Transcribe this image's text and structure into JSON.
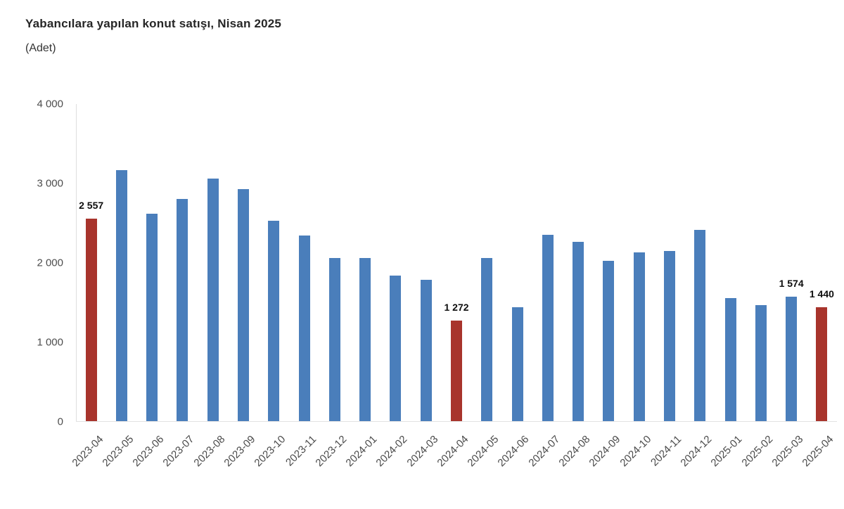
{
  "header": {
    "title": "Yabancılara yapılan konut satışı, Nisan 2025",
    "subtitle": "(Adet)"
  },
  "colors": {
    "background": "#ffffff",
    "title_text": "#262626",
    "subtitle_text": "#333333",
    "tick_text": "#4d4d4d",
    "axis_line": "#dedede",
    "value_label_text": "#0d0d0d",
    "bar_blue": "#4A7EBB",
    "bar_red": "#A8342C"
  },
  "chart_data": {
    "type": "bar",
    "title": "Yabancılara yapılan konut satışı, Nisan 2025",
    "xlabel": "",
    "ylabel": "(Adet)",
    "ylim": [
      0,
      4000
    ],
    "grid": false,
    "legend": "none",
    "x_tick_rotation": -45,
    "bar_color_default": "#4A7EBB",
    "bar_color_highlight": "#A8342C",
    "yticks": [
      {
        "value": 0,
        "label": "0"
      },
      {
        "value": 1000,
        "label": "1 000"
      },
      {
        "value": 2000,
        "label": "2 000"
      },
      {
        "value": 3000,
        "label": "3 000"
      },
      {
        "value": 4000,
        "label": "4 000"
      }
    ],
    "categories": [
      "2023-04",
      "2023-05",
      "2023-06",
      "2023-07",
      "2023-08",
      "2023-09",
      "2023-10",
      "2023-11",
      "2023-12",
      "2024-01",
      "2024-02",
      "2024-03",
      "2024-04",
      "2024-05",
      "2024-06",
      "2024-07",
      "2024-08",
      "2024-09",
      "2024-10",
      "2024-11",
      "2024-12",
      "2025-01",
      "2025-02",
      "2025-03",
      "2025-04"
    ],
    "values": [
      2557,
      3165,
      2620,
      2800,
      3060,
      2930,
      2530,
      2340,
      2060,
      2060,
      1840,
      1780,
      1272,
      2055,
      1440,
      2350,
      2265,
      2025,
      2125,
      2150,
      2415,
      1550,
      1460,
      1574,
      1440
    ],
    "highlighted_indices": [
      0,
      12,
      24
    ],
    "data_labels": [
      {
        "index": 0,
        "text": "2 557"
      },
      {
        "index": 12,
        "text": "1 272"
      },
      {
        "index": 23,
        "text": "1 574"
      },
      {
        "index": 24,
        "text": "1 440"
      }
    ]
  }
}
